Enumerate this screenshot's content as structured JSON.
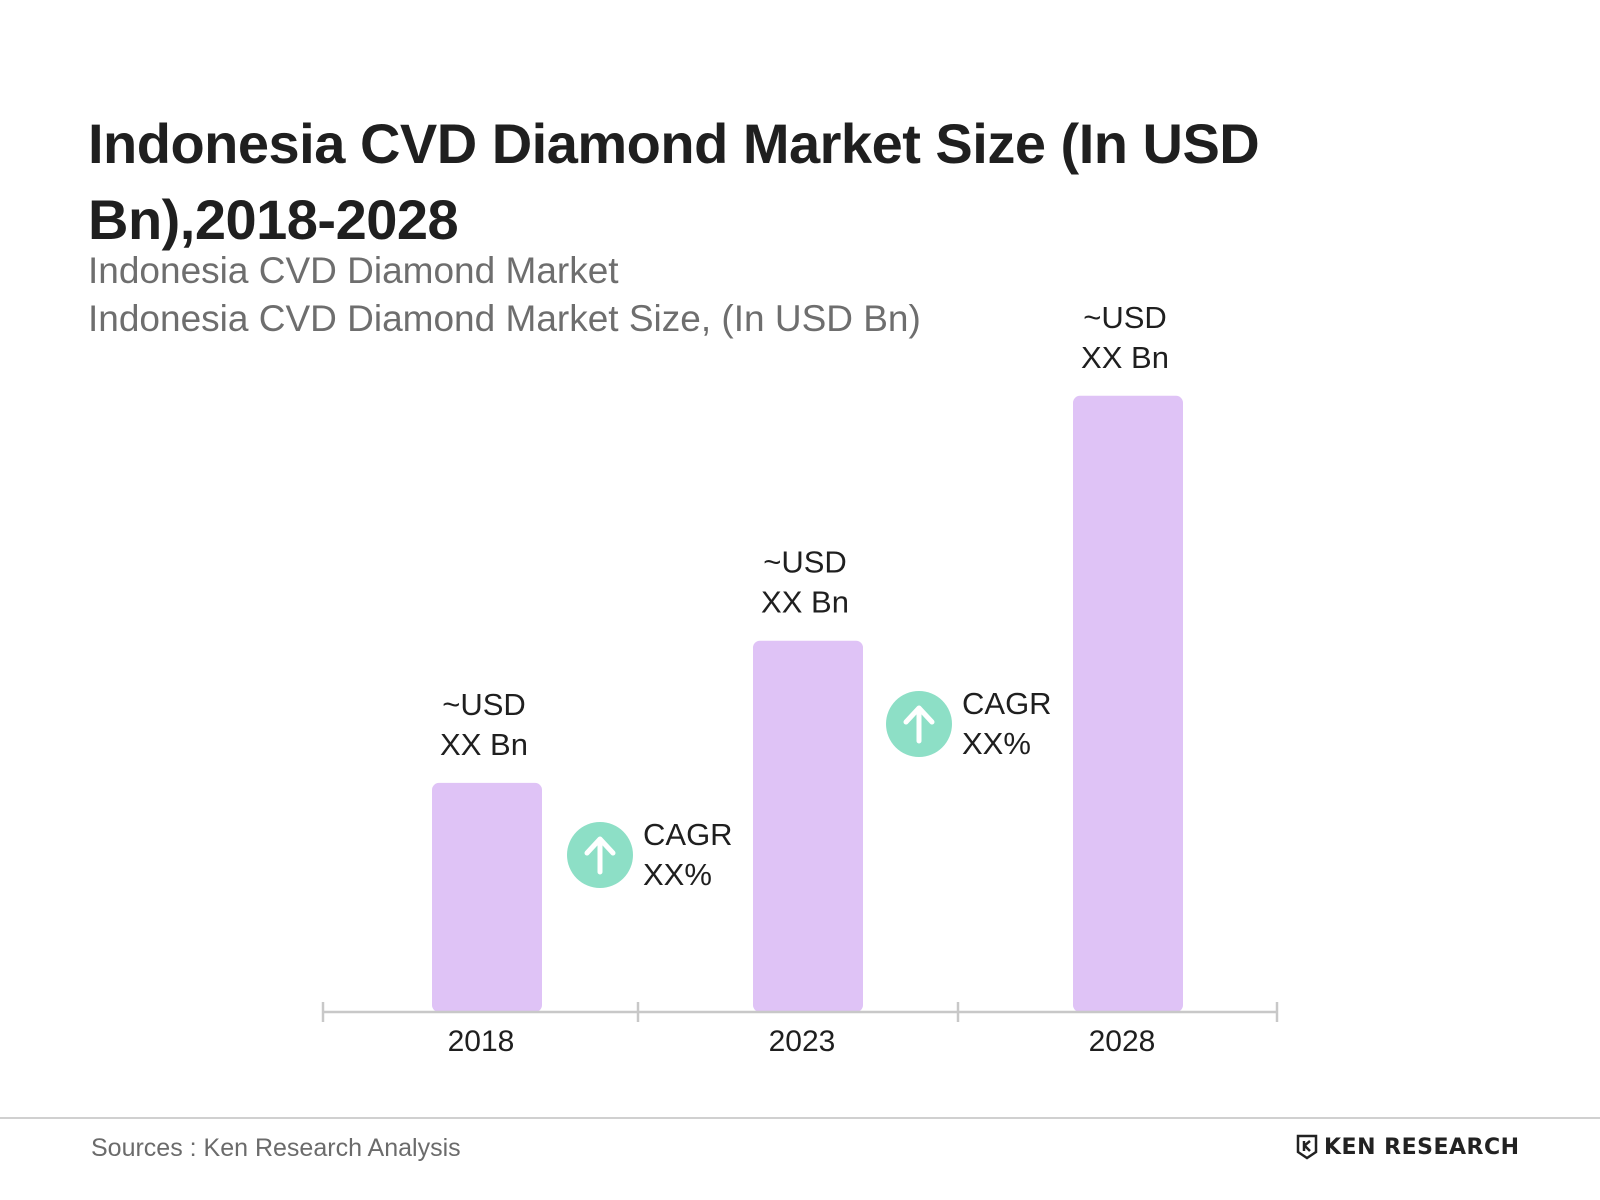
{
  "title": "Indonesia CVD Diamond Market Size (In USD Bn),2018-2028",
  "subtitle_1": "Indonesia CVD Diamond Market",
  "subtitle_2": "Indonesia CVD Diamond Market Size, (In USD Bn)",
  "source": "Sources : Ken Research Analysis",
  "logo_text": "KEN RESEARCH",
  "colors": {
    "bar": "#dfc3f6",
    "cagr_circle": "#8ddfc6",
    "axis": "#c8c8c8",
    "text": "#1f1f1f"
  },
  "chart_data": {
    "type": "bar",
    "categories": [
      "2018",
      "2023",
      "2028"
    ],
    "values": [
      2.9,
      4.7,
      7.8
    ],
    "value_labels": [
      [
        "~USD",
        "XX Bn"
      ],
      [
        "~USD",
        "XX Bn"
      ],
      [
        "~USD",
        "XX Bn"
      ]
    ],
    "ylim": [
      0,
      8
    ],
    "xlabel": "",
    "ylabel": "",
    "grid": false,
    "annotations": [
      {
        "text": [
          "CAGR",
          "XX%"
        ],
        "icon": "arrow-up-icon",
        "between": [
          "2018",
          "2023"
        ]
      },
      {
        "text": [
          "CAGR",
          "XX%"
        ],
        "icon": "arrow-up-icon",
        "between": [
          "2023",
          "2028"
        ]
      }
    ]
  }
}
